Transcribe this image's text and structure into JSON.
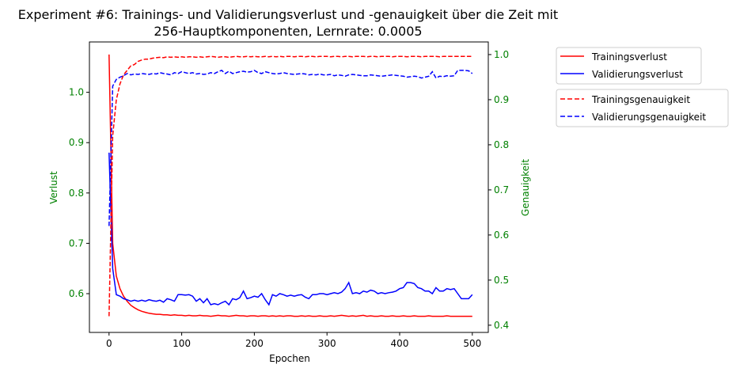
{
  "chart_data": {
    "type": "line",
    "title": [
      "Experiment #6: Trainings- und Validierungsverlust und -genauigkeit über die Zeit mit",
      "256-Hauptkomponenten, Lernrate: 0.0005"
    ],
    "xlabel": "Epochen",
    "ylabel_left": "Verlust",
    "ylabel_right": "Genauigkeit",
    "xlim": [
      -27,
      522
    ],
    "ylim_left": [
      0.523,
      1.1
    ],
    "ylim_right": [
      0.384,
      1.028
    ],
    "x_ticks": [
      "0",
      "100",
      "200",
      "300",
      "400",
      "500"
    ],
    "y_ticks_left": [
      "0.6",
      "0.7",
      "0.8",
      "0.9",
      "1.0"
    ],
    "y_ticks_right": [
      "0.4",
      "0.5",
      "0.6",
      "0.7",
      "0.8",
      "0.9",
      "1.0"
    ],
    "axis_label_color": "#008000",
    "grid": false,
    "legend_placement": "outside-right",
    "x_step": 5,
    "x_start": 0,
    "series": [
      {
        "name": "Trainingsverlust",
        "axis": "left",
        "color": "#ff0000",
        "style": "solid",
        "values": [
          1.075,
          0.7,
          0.635,
          0.61,
          0.595,
          0.585,
          0.577,
          0.572,
          0.568,
          0.565,
          0.563,
          0.561,
          0.56,
          0.559,
          0.559,
          0.558,
          0.558,
          0.557,
          0.558,
          0.557,
          0.557,
          0.556,
          0.557,
          0.556,
          0.556,
          0.557,
          0.556,
          0.556,
          0.555,
          0.556,
          0.557,
          0.556,
          0.556,
          0.555,
          0.556,
          0.557,
          0.556,
          0.556,
          0.555,
          0.556,
          0.556,
          0.555,
          0.556,
          0.556,
          0.555,
          0.556,
          0.555,
          0.556,
          0.555,
          0.556,
          0.556,
          0.555,
          0.555,
          0.556,
          0.555,
          0.556,
          0.555,
          0.555,
          0.556,
          0.555,
          0.555,
          0.556,
          0.555,
          0.556,
          0.557,
          0.556,
          0.555,
          0.556,
          0.555,
          0.556,
          0.557,
          0.555,
          0.556,
          0.555,
          0.555,
          0.556,
          0.555,
          0.555,
          0.556,
          0.555,
          0.555,
          0.556,
          0.555,
          0.555,
          0.556,
          0.555,
          0.555,
          0.555,
          0.556,
          0.555,
          0.555,
          0.555,
          0.555,
          0.556,
          0.555,
          0.555,
          0.555,
          0.555,
          0.555,
          0.555,
          0.555
        ]
      },
      {
        "name": "Validierungsverlust",
        "axis": "left",
        "color": "#0000ff",
        "style": "solid",
        "values": [
          0.88,
          0.65,
          0.598,
          0.595,
          0.59,
          0.588,
          0.585,
          0.587,
          0.585,
          0.587,
          0.585,
          0.588,
          0.586,
          0.585,
          0.587,
          0.583,
          0.59,
          0.588,
          0.585,
          0.598,
          0.598,
          0.597,
          0.598,
          0.595,
          0.585,
          0.59,
          0.582,
          0.59,
          0.578,
          0.58,
          0.578,
          0.582,
          0.585,
          0.578,
          0.59,
          0.588,
          0.592,
          0.605,
          0.59,
          0.592,
          0.595,
          0.593,
          0.6,
          0.588,
          0.578,
          0.598,
          0.595,
          0.6,
          0.598,
          0.595,
          0.597,
          0.595,
          0.597,
          0.598,
          0.593,
          0.59,
          0.598,
          0.598,
          0.6,
          0.6,
          0.598,
          0.6,
          0.602,
          0.6,
          0.603,
          0.61,
          0.622,
          0.6,
          0.602,
          0.6,
          0.605,
          0.603,
          0.607,
          0.605,
          0.6,
          0.602,
          0.6,
          0.602,
          0.603,
          0.605,
          0.61,
          0.612,
          0.622,
          0.622,
          0.62,
          0.612,
          0.61,
          0.605,
          0.605,
          0.6,
          0.612,
          0.605,
          0.605,
          0.61,
          0.608,
          0.61,
          0.6,
          0.59,
          0.59,
          0.59,
          0.598
        ]
      },
      {
        "name": "Trainingsgenauigkeit",
        "axis": "right",
        "color": "#ff0000",
        "style": "dashed",
        "values": [
          0.42,
          0.82,
          0.9,
          0.935,
          0.955,
          0.965,
          0.975,
          0.978,
          0.985,
          0.988,
          0.99,
          0.99,
          0.992,
          0.993,
          0.994,
          0.993,
          0.995,
          0.994,
          0.995,
          0.994,
          0.995,
          0.994,
          0.995,
          0.995,
          0.994,
          0.995,
          0.994,
          0.995,
          0.996,
          0.995,
          0.994,
          0.995,
          0.995,
          0.994,
          0.995,
          0.996,
          0.995,
          0.995,
          0.996,
          0.995,
          0.996,
          0.995,
          0.995,
          0.996,
          0.995,
          0.996,
          0.995,
          0.996,
          0.995,
          0.996,
          0.996,
          0.995,
          0.996,
          0.996,
          0.995,
          0.996,
          0.996,
          0.995,
          0.996,
          0.996,
          0.996,
          0.995,
          0.996,
          0.996,
          0.995,
          0.996,
          0.996,
          0.995,
          0.996,
          0.996,
          0.996,
          0.995,
          0.996,
          0.996,
          0.995,
          0.996,
          0.996,
          0.996,
          0.995,
          0.996,
          0.996,
          0.996,
          0.995,
          0.996,
          0.996,
          0.996,
          0.995,
          0.996,
          0.996,
          0.996,
          0.996,
          0.995,
          0.996,
          0.996,
          0.996,
          0.996,
          0.996,
          0.996,
          0.996,
          0.996,
          0.996
        ]
      },
      {
        "name": "Validierungsgenauigkeit",
        "axis": "right",
        "color": "#0000ff",
        "style": "dashed",
        "values": [
          0.62,
          0.93,
          0.945,
          0.95,
          0.953,
          0.958,
          0.955,
          0.957,
          0.956,
          0.958,
          0.957,
          0.956,
          0.958,
          0.957,
          0.96,
          0.958,
          0.957,
          0.955,
          0.96,
          0.958,
          0.962,
          0.96,
          0.958,
          0.96,
          0.957,
          0.958,
          0.956,
          0.957,
          0.96,
          0.958,
          0.962,
          0.965,
          0.958,
          0.963,
          0.958,
          0.96,
          0.962,
          0.963,
          0.961,
          0.962,
          0.965,
          0.96,
          0.958,
          0.962,
          0.96,
          0.958,
          0.957,
          0.958,
          0.96,
          0.958,
          0.957,
          0.956,
          0.957,
          0.958,
          0.957,
          0.955,
          0.956,
          0.955,
          0.957,
          0.955,
          0.955,
          0.956,
          0.953,
          0.955,
          0.954,
          0.952,
          0.955,
          0.956,
          0.955,
          0.954,
          0.953,
          0.953,
          0.955,
          0.954,
          0.953,
          0.952,
          0.953,
          0.954,
          0.955,
          0.954,
          0.953,
          0.952,
          0.95,
          0.951,
          0.952,
          0.951,
          0.948,
          0.95,
          0.952,
          0.962,
          0.948,
          0.952,
          0.951,
          0.953,
          0.952,
          0.953,
          0.965,
          0.965,
          0.965,
          0.964,
          0.958
        ]
      }
    ]
  }
}
